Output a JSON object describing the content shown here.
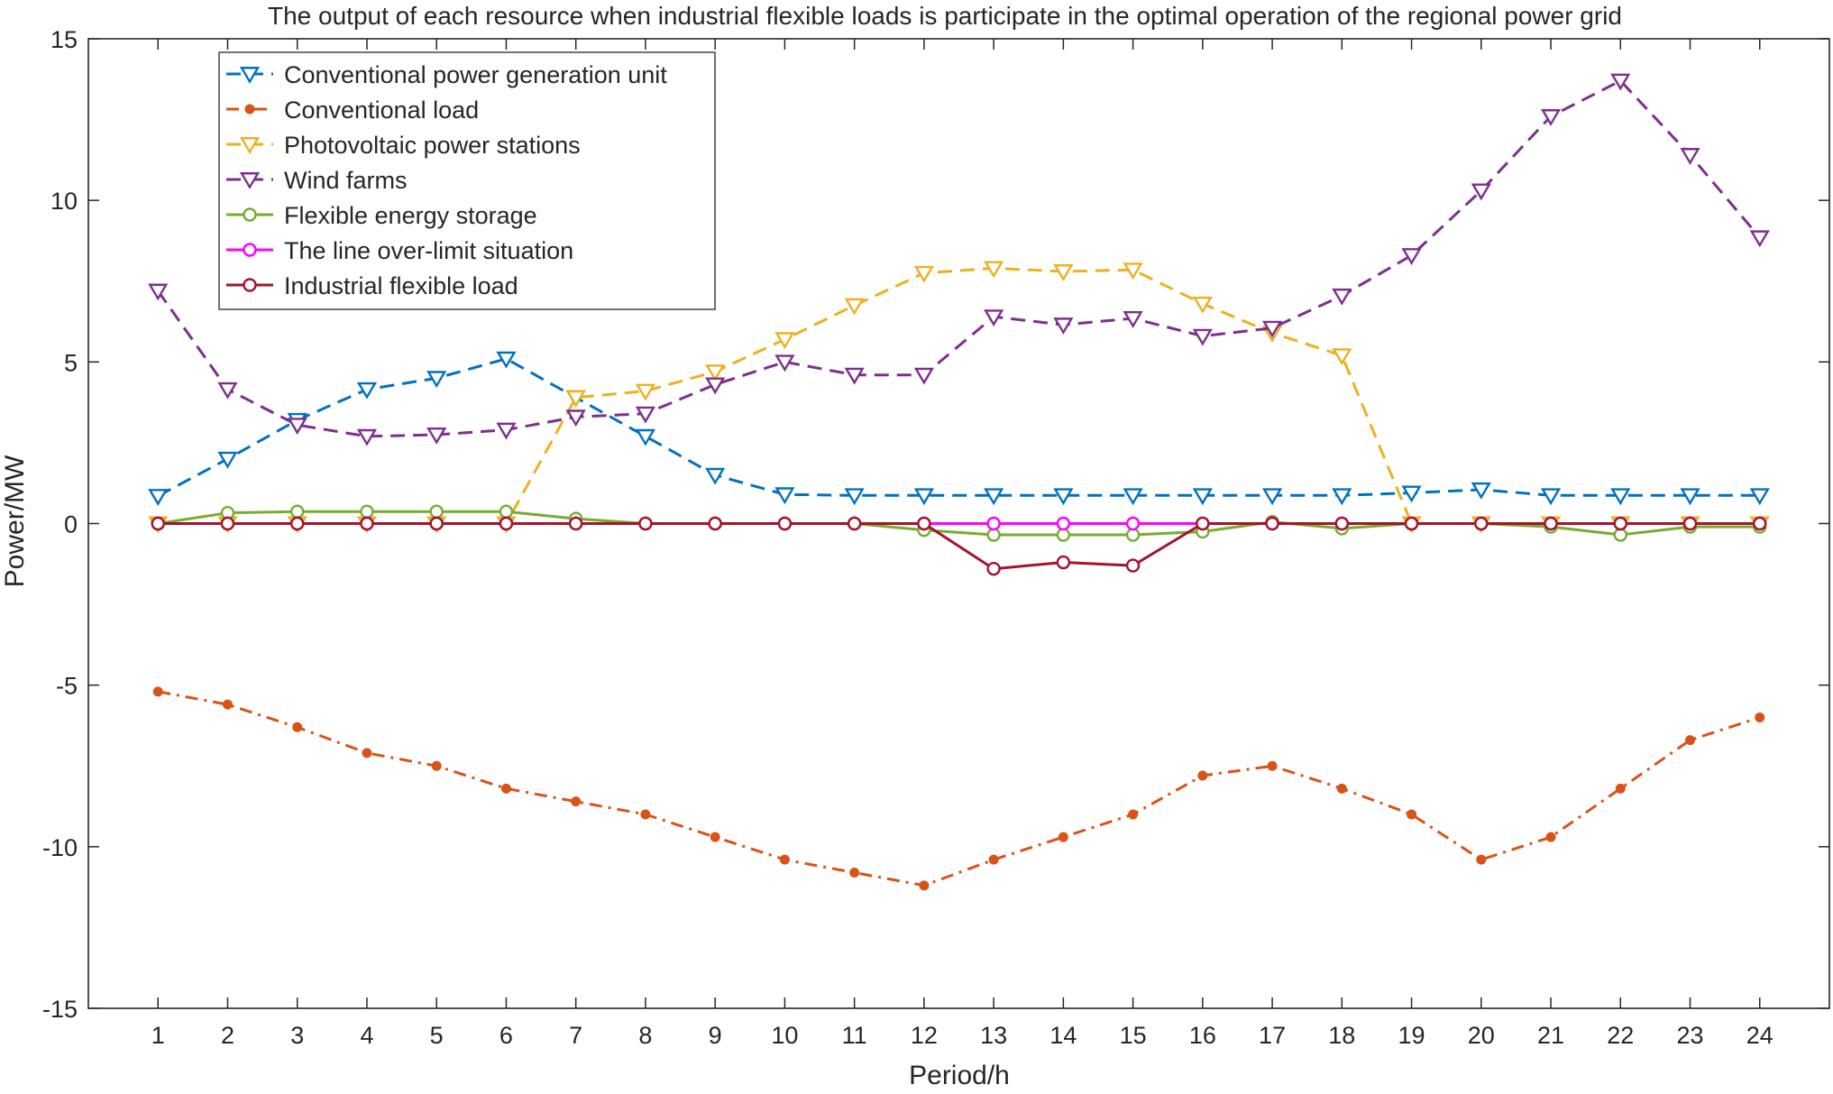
{
  "chart_data": {
    "type": "line",
    "title": "The output of each resource when industrial flexible loads is participate in the optimal operation of the regional power grid",
    "xlabel": "Period/h",
    "ylabel": "Power/MW",
    "x": [
      1,
      2,
      3,
      4,
      5,
      6,
      7,
      8,
      9,
      10,
      11,
      12,
      13,
      14,
      15,
      16,
      17,
      18,
      19,
      20,
      21,
      22,
      23,
      24
    ],
    "xlim": [
      0,
      25
    ],
    "ylim": [
      -15,
      15
    ],
    "yticks": [
      -15,
      -10,
      -5,
      0,
      5,
      10,
      15
    ],
    "ytick_labels": [
      "-15",
      "-10",
      "-5",
      "0",
      "5",
      "10",
      "15"
    ],
    "grid": false,
    "legend_position": "top-left",
    "series": [
      {
        "name": "Conventional power generation unit",
        "color": "#0072BD",
        "dash": "dashed",
        "marker": "triangle-down",
        "values": [
          0.85,
          2.0,
          3.2,
          4.15,
          4.5,
          5.1,
          3.9,
          2.7,
          1.5,
          0.9,
          0.87,
          0.87,
          0.87,
          0.87,
          0.87,
          0.87,
          0.87,
          0.87,
          0.95,
          1.05,
          0.87,
          0.87,
          0.87,
          0.87
        ]
      },
      {
        "name": "Conventional load",
        "color": "#D95319",
        "dash": "dashdot",
        "marker": "dot",
        "values": [
          -5.2,
          -5.6,
          -6.3,
          -7.1,
          -7.5,
          -8.2,
          -8.6,
          -9.0,
          -9.7,
          -10.4,
          -10.8,
          -11.2,
          -10.4,
          -9.7,
          -9.0,
          -7.8,
          -7.5,
          -8.2,
          -9.0,
          -10.4,
          -9.7,
          -8.2,
          -6.7,
          -6.0
        ]
      },
      {
        "name": "Photovoltaic power stations",
        "color": "#EDB120",
        "dash": "dashed",
        "marker": "triangle-down",
        "values": [
          0,
          0,
          0,
          0,
          0,
          0,
          3.9,
          4.1,
          4.7,
          5.7,
          6.75,
          7.75,
          7.9,
          7.8,
          7.85,
          6.8,
          5.9,
          5.2,
          0,
          0,
          0,
          0,
          0,
          0
        ]
      },
      {
        "name": "Wind farms",
        "color": "#7E2F8E",
        "dash": "dashed",
        "marker": "triangle-down",
        "values": [
          7.2,
          4.15,
          3.05,
          2.7,
          2.75,
          2.9,
          3.3,
          3.4,
          4.3,
          5.0,
          4.6,
          4.6,
          6.4,
          6.15,
          6.35,
          5.8,
          6.05,
          7.05,
          8.3,
          10.3,
          12.6,
          13.7,
          11.4,
          8.85
        ]
      },
      {
        "name": "Flexible energy storage",
        "color": "#77AC30",
        "dash": "solid",
        "marker": "circle",
        "values": [
          0,
          0.33,
          0.37,
          0.37,
          0.37,
          0.37,
          0.15,
          0,
          0,
          0,
          0,
          -0.2,
          -0.35,
          -0.35,
          -0.35,
          -0.25,
          0.05,
          -0.15,
          0,
          0,
          -0.1,
          -0.35,
          -0.1,
          -0.1
        ]
      },
      {
        "name": "The line over-limit situation",
        "color": "#FF00FF",
        "dash": "solid",
        "marker": "circle",
        "values": [
          0,
          0,
          0,
          0,
          0,
          0,
          0,
          0,
          0,
          0,
          0,
          0,
          0,
          0,
          0,
          0,
          0,
          0,
          0,
          0,
          0,
          0,
          0,
          0
        ]
      },
      {
        "name": "Industrial flexible load",
        "color": "#A2142F",
        "dash": "solid",
        "marker": "circle",
        "values": [
          0,
          0,
          0,
          0,
          0,
          0,
          0,
          0,
          0,
          0,
          0,
          0,
          -1.4,
          -1.2,
          -1.3,
          0,
          0,
          0,
          0,
          0,
          0,
          0,
          0,
          0
        ]
      }
    ]
  }
}
